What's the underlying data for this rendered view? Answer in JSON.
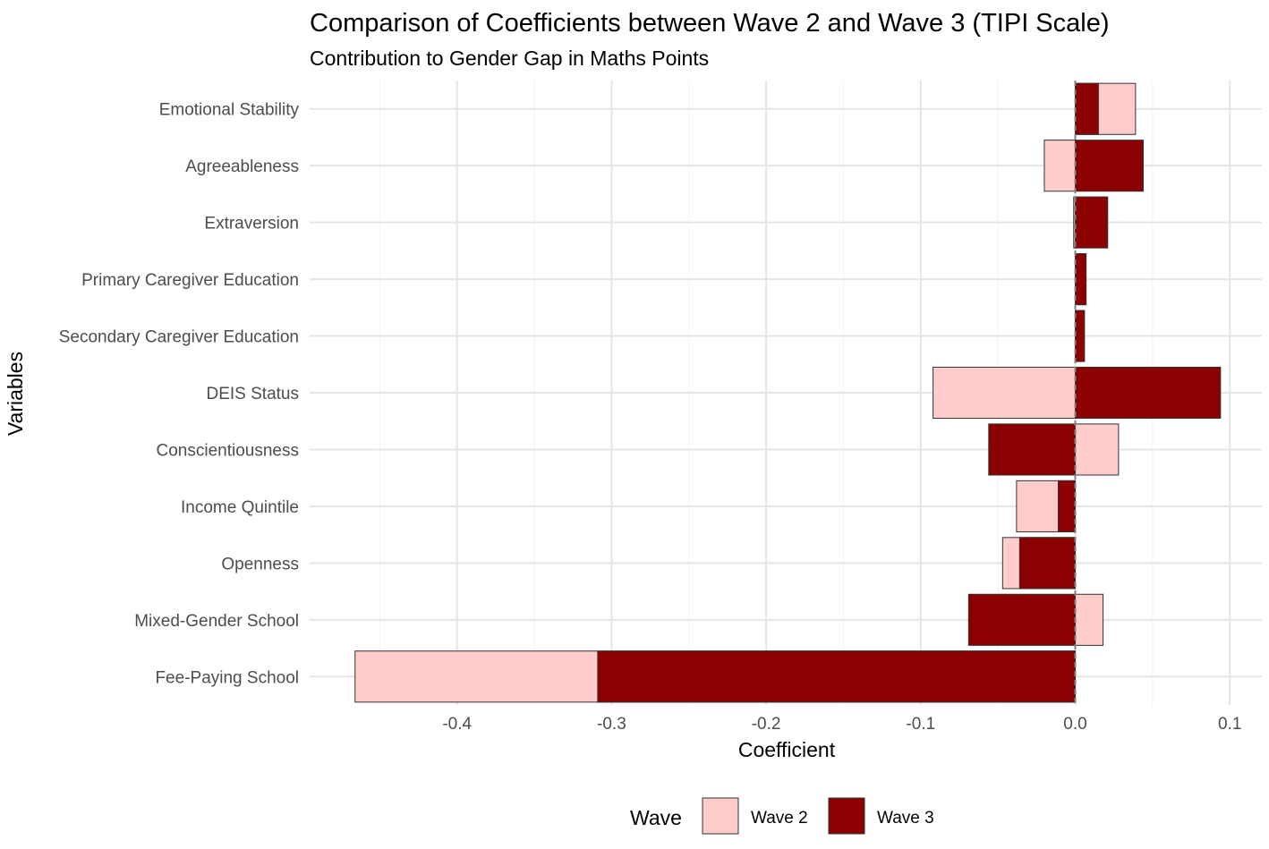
{
  "chart_data": {
    "type": "bar",
    "orientation": "horizontal",
    "bar_mode": "overlay",
    "title": "Comparison of Coefficients between Wave 2 and Wave 3 (TIPI Scale)",
    "subtitle": "Contribution to Gender Gap in Maths Points",
    "xlabel": "Coefficient",
    "ylabel": "Variables",
    "xlim": [
      -0.48,
      0.11
    ],
    "xticks": [
      -0.4,
      -0.3,
      -0.2,
      -0.1,
      0.0,
      0.1
    ],
    "xtick_labels": [
      "-0.4",
      "-0.3",
      "-0.2",
      "-0.1",
      "0.0",
      "0.1"
    ],
    "grid": true,
    "reference_line": 0,
    "categories": [
      "Emotional Stability",
      "Agreeableness",
      "Extraversion",
      "Primary Caregiver Education",
      "Secondary Caregiver Education",
      "DEIS Status",
      "Conscientiousness",
      "Income Quintile",
      "Openness",
      "Mixed-Gender School",
      "Fee-Paying School"
    ],
    "series": [
      {
        "name": "Wave 2",
        "color": "#FFCCCC",
        "values": [
          0.039,
          -0.02,
          -0.001,
          0.007,
          0.001,
          -0.092,
          0.028,
          -0.038,
          -0.047,
          0.018,
          -0.466
        ]
      },
      {
        "name": "Wave 3",
        "color": "#8B0000",
        "values": [
          0.015,
          0.044,
          0.021,
          0.007,
          0.006,
          0.094,
          -0.056,
          -0.011,
          -0.036,
          -0.069,
          -0.309
        ]
      }
    ],
    "legend": {
      "title": "Wave",
      "placement": "bottom",
      "entries": [
        "Wave 2",
        "Wave 3"
      ]
    }
  }
}
